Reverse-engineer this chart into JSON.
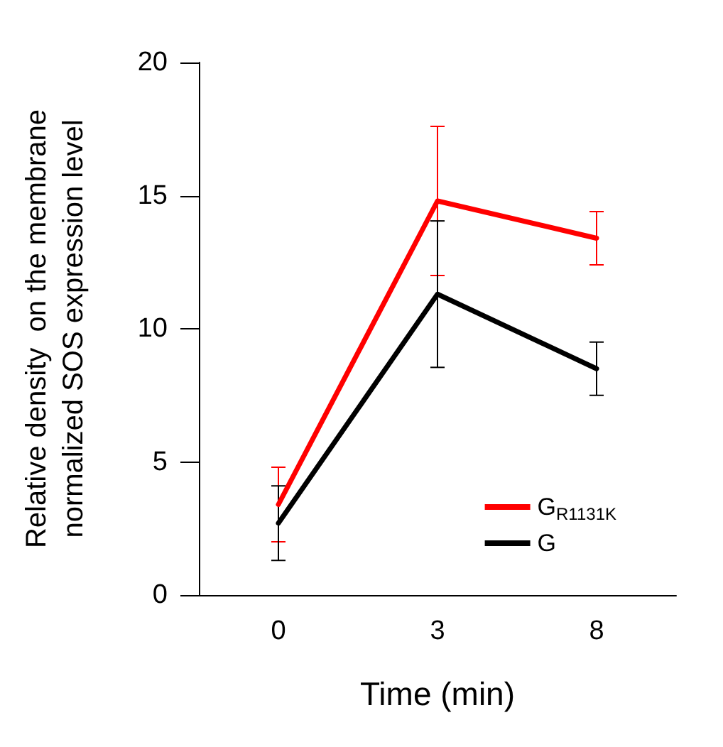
{
  "chart_data": {
    "type": "line",
    "xlabel": "Time (min)",
    "ylabel": "Relative density  on the membrane\nnormalized SOS expression level",
    "categories": [
      "0",
      "3",
      "8"
    ],
    "series": [
      {
        "name": "G$_{R1131K}$",
        "color": "#ff0000",
        "values": [
          3.4,
          14.8,
          13.4
        ],
        "errors": [
          1.4,
          2.8,
          1.0
        ]
      },
      {
        "name": "G",
        "color": "#000000",
        "values": [
          2.7,
          11.3,
          8.5
        ],
        "errors": [
          1.4,
          2.75,
          1.0
        ]
      }
    ],
    "ylim": [
      0,
      20
    ],
    "yticks": [
      0,
      5,
      10,
      15,
      20
    ],
    "grid": false,
    "legend": "bottom right",
    "marker": "none",
    "line_style": "solid"
  }
}
